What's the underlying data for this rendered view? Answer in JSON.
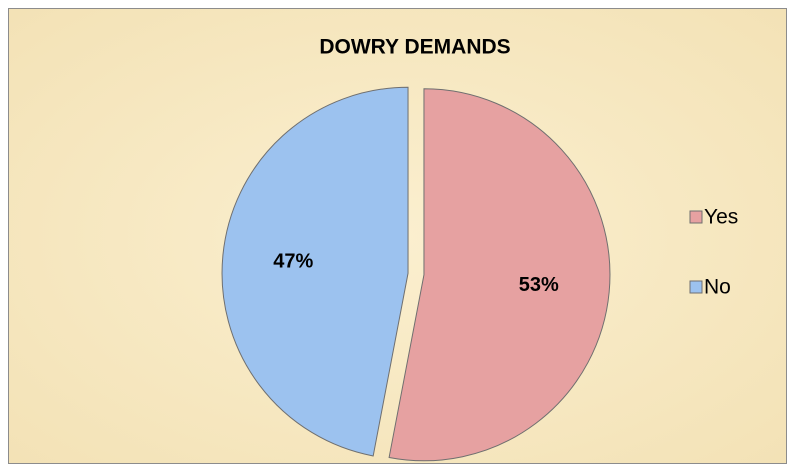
{
  "chart_data": {
    "type": "pie",
    "title": "DOWRY DEMANDS",
    "categories": [
      "Yes",
      "No"
    ],
    "values": [
      53,
      47
    ],
    "value_labels": [
      "53%",
      "47%"
    ],
    "colors": [
      "#e6a1a1",
      "#9cc2ef"
    ],
    "legend": "right"
  }
}
